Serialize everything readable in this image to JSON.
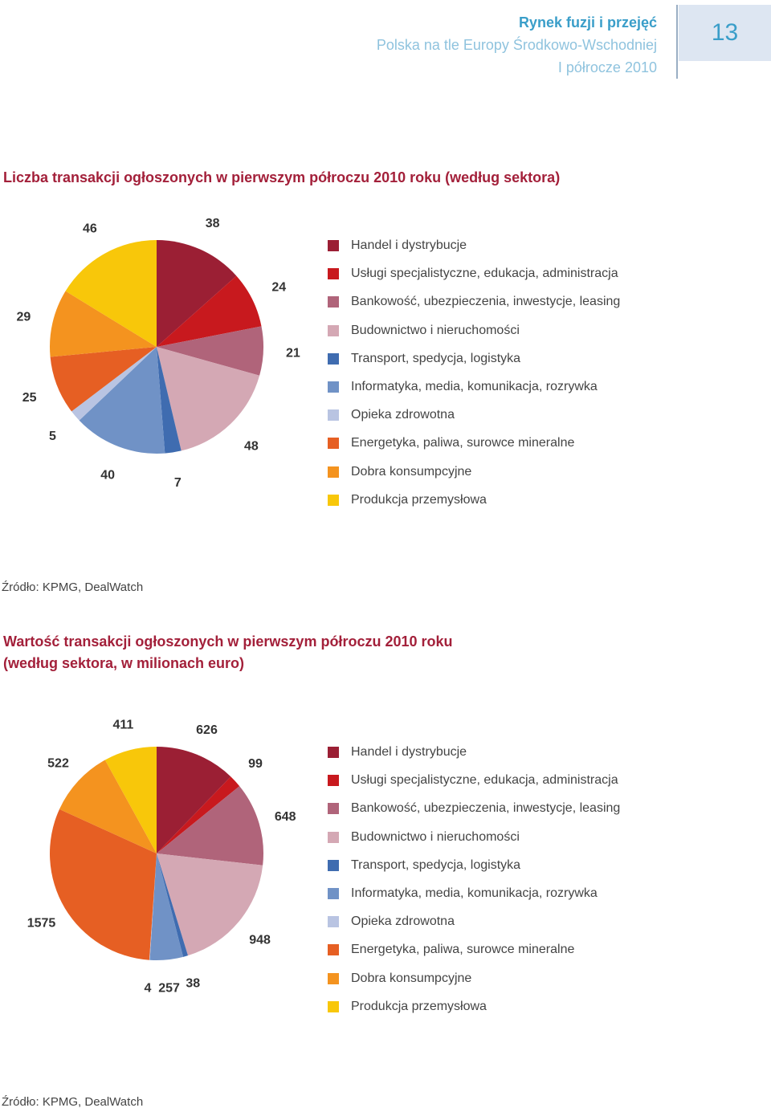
{
  "header": {
    "title": "Rynek fuzji i przejęć",
    "subtitle": "Polska na tle Europy Środkowo-Wschodniej",
    "period": "I półrocze 2010",
    "page_number": "13"
  },
  "categories": [
    "Handel i dystrybucje",
    "Usługi specjalistyczne, edukacja, administracja",
    "Bankowość, ubezpieczenia, inwestycje, leasing",
    "Budownictwo i nieruchomości",
    "Transport, spedycja, logistyka",
    "Informatyka, media, komunikacja, rozrywka",
    "Opieka zdrowotna",
    "Energetyka, paliwa, surowce mineralne",
    "Dobra konsumpcyjne",
    "Produkcja przemysłowa"
  ],
  "colors": [
    "#9b1f34",
    "#c8191e",
    "#b0647a",
    "#d4a8b4",
    "#3f6cb0",
    "#7092c6",
    "#b9c4e2",
    "#e65f23",
    "#f4931f",
    "#f8c70a"
  ],
  "chart_data": [
    {
      "type": "pie",
      "title": "Liczba transakcji ogłoszonych w pierwszym półroczu 2010 roku (według sektora)",
      "source": "Źródło: KPMG, DealWatch",
      "labels": [
        "Handel i dystrybucje",
        "Usługi specjalistyczne, edukacja, administracja",
        "Bankowość, ubezpieczenia, inwestycje, leasing",
        "Budownictwo i nieruchomości",
        "Transport, spedycja, logistyka",
        "Informatyka, media, komunikacja, rozrywka",
        "Opieka zdrowotna",
        "Energetyka, paliwa, surowce mineralne",
        "Dobra konsumpcyjne",
        "Produkcja przemysłowa"
      ],
      "values": [
        38,
        24,
        21,
        48,
        7,
        40,
        5,
        25,
        29,
        46
      ],
      "legend_position": "right"
    },
    {
      "type": "pie",
      "title": "Wartość transakcji ogłoszonych w pierwszym półroczu 2010 roku (według sektora, w milionach euro)",
      "source": "Źródło: KPMG, DealWatch",
      "labels": [
        "Handel i dystrybucje",
        "Usługi specjalistyczne, edukacja, administracja",
        "Bankowość, ubezpieczenia, inwestycje, leasing",
        "Budownictwo i nieruchomości",
        "Transport, spedycja, logistyka",
        "Informatyka, media, komunikacja, rozrywka",
        "Opieka zdrowotna",
        "Energetyka, paliwa, surowce mineralne",
        "Dobra konsumpcyjne",
        "Produkcja przemysłowa"
      ],
      "values": [
        626,
        99,
        648,
        948,
        38,
        257,
        4,
        1575,
        522,
        411
      ],
      "legend_position": "right"
    }
  ]
}
